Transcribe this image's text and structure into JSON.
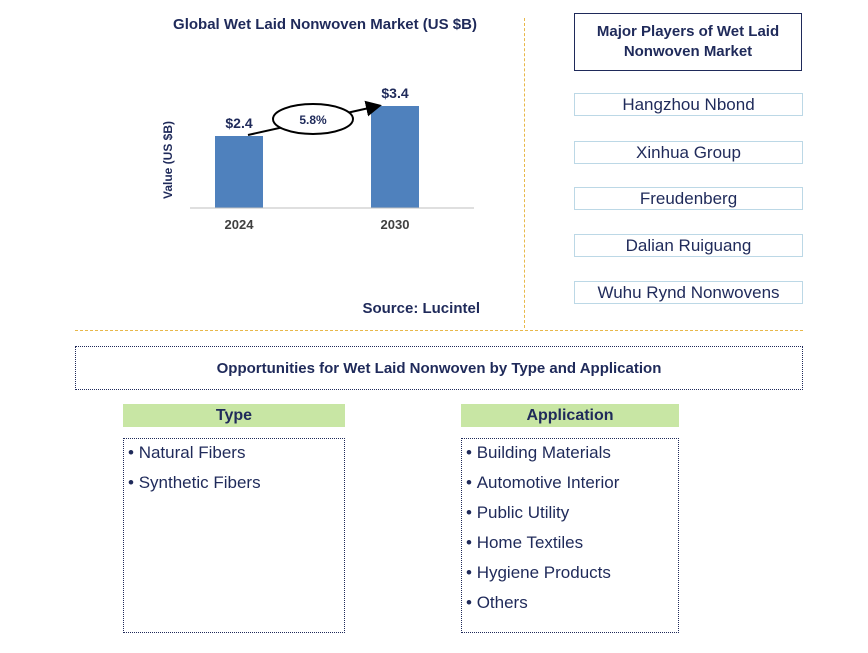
{
  "chart_data": {
    "type": "bar",
    "title": "Global Wet Laid Nonwoven Market (US $B)",
    "ylabel": "Value (US $B)",
    "xlabel": "",
    "categories": [
      "2024",
      "2030"
    ],
    "values": [
      2.4,
      3.4
    ],
    "data_labels": [
      "$2.4",
      "$3.4"
    ],
    "annotation": "5.8%",
    "bar_color": "#4f81bd",
    "grid": false,
    "ylim": [
      0,
      4
    ]
  },
  "source": "Source: Lucintel",
  "players": {
    "title": "Major Players of Wet Laid Nonwoven Market",
    "items": [
      "Hangzhou Nbond",
      "Xinhua Group",
      "Freudenberg",
      "Dalian Ruiguang",
      "Wuhu Rynd Nonwovens"
    ]
  },
  "opportunities": {
    "title": "Opportunities for Wet Laid Nonwoven by Type and Application",
    "type": {
      "heading": "Type",
      "items": [
        "Natural Fibers",
        "Synthetic Fibers"
      ]
    },
    "application": {
      "heading": "Application",
      "items": [
        "Building Materials",
        "Automotive Interior",
        "Public Utility",
        "Home Textiles",
        "Hygiene Products",
        "Others"
      ]
    }
  }
}
